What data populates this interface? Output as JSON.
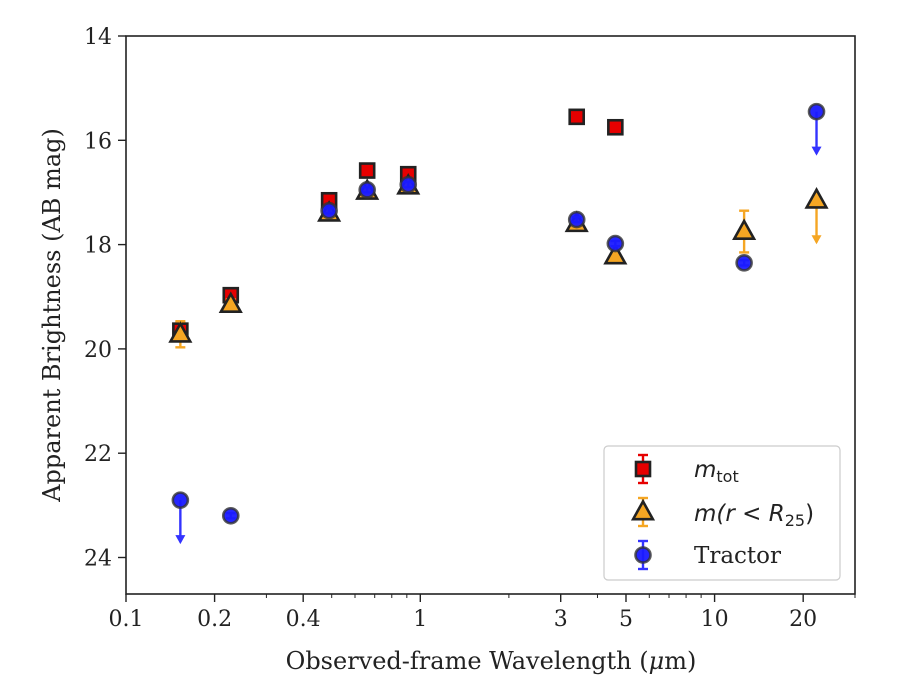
{
  "chart_data": {
    "type": "scatter",
    "xscale": "log",
    "xlim": [
      0.1,
      30
    ],
    "ylim": [
      24.7,
      14
    ],
    "y_inverted": true,
    "xlabel_prefix": "Observed-frame Wavelength (",
    "xlabel_mu": "μ",
    "xlabel_suffix": "m)",
    "ylabel": "Apparent Brightness (AB mag)",
    "x_ticks": [
      {
        "value": 0.1,
        "label": "0.1"
      },
      {
        "value": 0.2,
        "label": "0.2"
      },
      {
        "value": 0.4,
        "label": "0.4"
      },
      {
        "value": 1,
        "label": "1"
      },
      {
        "value": 3,
        "label": "3"
      },
      {
        "value": 5,
        "label": "5"
      },
      {
        "value": 10,
        "label": "10"
      },
      {
        "value": 20,
        "label": "20"
      }
    ],
    "y_ticks": [
      {
        "value": 14,
        "label": "14"
      },
      {
        "value": 16,
        "label": "16"
      },
      {
        "value": 18,
        "label": "18"
      },
      {
        "value": 20,
        "label": "20"
      },
      {
        "value": 22,
        "label": "22"
      },
      {
        "value": 24,
        "label": "24"
      }
    ],
    "legend_position": "lower-right",
    "series": [
      {
        "name": "m_tot",
        "legend_main": "m",
        "legend_sub": "tot",
        "marker": "square",
        "color": "#e60000",
        "edge": "#222222",
        "errcolor": "#e60000",
        "points": [
          {
            "x": 0.153,
            "y": 19.65,
            "err": 0.15
          },
          {
            "x": 0.227,
            "y": 18.97,
            "err": 0.08
          },
          {
            "x": 0.49,
            "y": 17.15,
            "err": 0.05
          },
          {
            "x": 0.66,
            "y": 16.58,
            "err": 0.05
          },
          {
            "x": 0.91,
            "y": 16.65,
            "err": 0.05
          },
          {
            "x": 3.4,
            "y": 15.55,
            "err": 0.05
          },
          {
            "x": 4.6,
            "y": 15.75,
            "err": 0.05
          }
        ]
      },
      {
        "name": "m(r<R25)",
        "legend_main": "m(r < R",
        "legend_sub": "25",
        "legend_end": ")",
        "marker": "triangle",
        "color": "#f5a623",
        "edge": "#222222",
        "errcolor": "#f5a623",
        "points": [
          {
            "x": 0.153,
            "y": 19.72,
            "err": 0.25
          },
          {
            "x": 0.227,
            "y": 19.15,
            "err": 0.1
          },
          {
            "x": 0.49,
            "y": 17.4,
            "err": 0.05
          },
          {
            "x": 0.66,
            "y": 16.98,
            "err": 0.05
          },
          {
            "x": 0.91,
            "y": 16.88,
            "err": 0.05
          },
          {
            "x": 3.4,
            "y": 17.6,
            "err": 0.05
          },
          {
            "x": 4.6,
            "y": 18.22,
            "err": 0.05
          },
          {
            "x": 12.6,
            "y": 17.75,
            "err": 0.4
          },
          {
            "x": 22.2,
            "y": 17.15,
            "upper_limit": true
          }
        ]
      },
      {
        "name": "Tractor",
        "legend_main": "Tractor",
        "marker": "circle",
        "color": "#1a1aff",
        "edge": "#333333",
        "errcolor": "#3333ff",
        "points": [
          {
            "x": 0.153,
            "y": 22.9,
            "upper_limit": true
          },
          {
            "x": 0.227,
            "y": 23.2,
            "err": 0.05
          },
          {
            "x": 0.49,
            "y": 17.35,
            "err": 0.05
          },
          {
            "x": 0.66,
            "y": 16.95,
            "err": 0.05
          },
          {
            "x": 0.91,
            "y": 16.85,
            "err": 0.05
          },
          {
            "x": 3.4,
            "y": 17.52,
            "err": 0.05
          },
          {
            "x": 4.6,
            "y": 17.98,
            "err": 0.05
          },
          {
            "x": 12.6,
            "y": 18.35,
            "err": 0.05
          },
          {
            "x": 22.2,
            "y": 15.45,
            "upper_limit": true
          }
        ]
      }
    ]
  }
}
